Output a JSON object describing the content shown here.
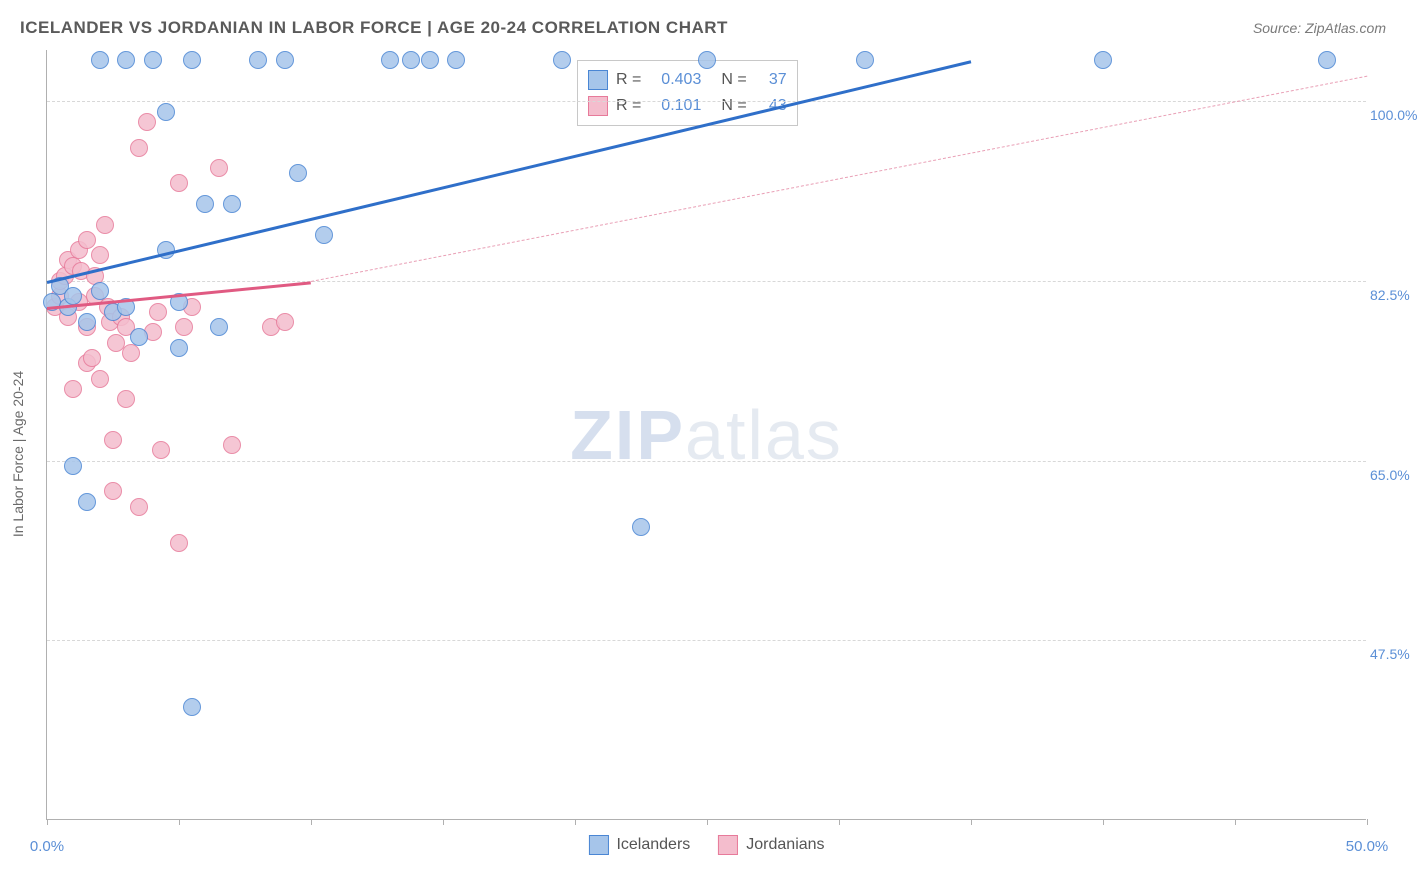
{
  "title": "ICELANDER VS JORDANIAN IN LABOR FORCE | AGE 20-24 CORRELATION CHART",
  "source": "Source: ZipAtlas.com",
  "y_axis_label": "In Labor Force | Age 20-24",
  "watermark": {
    "zip": "ZIP",
    "atlas": "atlas"
  },
  "chart": {
    "type": "scatter-with-trend",
    "background_color": "#ffffff",
    "grid_color": "#d8d8d8",
    "axis_color": "#b0b0b0",
    "xlim": [
      0,
      50
    ],
    "ylim": [
      30,
      105
    ],
    "xtick_positions": [
      0,
      5,
      10,
      15,
      20,
      25,
      30,
      35,
      40,
      45,
      50
    ],
    "xtick_labels": {
      "0": "0.0%",
      "50": "50.0%"
    },
    "ytick_positions": [
      47.5,
      65.0,
      82.5,
      100.0
    ],
    "ytick_labels": [
      "47.5%",
      "65.0%",
      "82.5%",
      "100.0%"
    ],
    "marker_radius": 9,
    "marker_stroke_width": 1.5,
    "marker_fill_opacity": 0.28,
    "label_color": "#5b8fd6",
    "series": [
      {
        "name": "Icelanders",
        "color_stroke": "#4a86d4",
        "color_fill": "#a6c5ea",
        "R": "0.403",
        "N": "37",
        "trend": {
          "x1": 0,
          "y1": 82.5,
          "x2": 35,
          "y2": 104,
          "width": 3,
          "dashed": false,
          "color": "#2f6fc9"
        },
        "points": [
          [
            0.2,
            80.5
          ],
          [
            0.5,
            82.0
          ],
          [
            0.8,
            80.0
          ],
          [
            1.0,
            81.0
          ],
          [
            1.0,
            64.5
          ],
          [
            1.5,
            61.0
          ],
          [
            1.5,
            78.5
          ],
          [
            2.0,
            81.5
          ],
          [
            2.0,
            104.0
          ],
          [
            2.5,
            79.5
          ],
          [
            3.0,
            104.0
          ],
          [
            3.0,
            80.0
          ],
          [
            3.5,
            77.0
          ],
          [
            4.0,
            104.0
          ],
          [
            4.5,
            85.5
          ],
          [
            4.5,
            99.0
          ],
          [
            5.0,
            76.0
          ],
          [
            5.0,
            80.5
          ],
          [
            5.5,
            41.0
          ],
          [
            5.5,
            104.0
          ],
          [
            6.0,
            90.0
          ],
          [
            6.5,
            78.0
          ],
          [
            7.0,
            90.0
          ],
          [
            8.0,
            104.0
          ],
          [
            9.0,
            104.0
          ],
          [
            9.5,
            93.0
          ],
          [
            10.5,
            87.0
          ],
          [
            13.0,
            104.0
          ],
          [
            13.8,
            104.0
          ],
          [
            14.5,
            104.0
          ],
          [
            15.5,
            104.0
          ],
          [
            19.5,
            104.0
          ],
          [
            22.5,
            58.5
          ],
          [
            25.0,
            104.0
          ],
          [
            31.0,
            104.0
          ],
          [
            40.0,
            104.0
          ],
          [
            48.5,
            104.0
          ]
        ]
      },
      {
        "name": "Jordanians",
        "color_stroke": "#e77a9a",
        "color_fill": "#f4bdcd",
        "R": "0.101",
        "N": "43",
        "trend_solid": {
          "x1": 0,
          "y1": 80.0,
          "x2": 10,
          "y2": 82.5,
          "width": 3,
          "dashed": false,
          "color": "#e05a82"
        },
        "trend_dash": {
          "x1": 10,
          "y1": 82.5,
          "x2": 50,
          "y2": 102.5,
          "width": 1.5,
          "dashed": true,
          "color": "#e9a0b6"
        },
        "points": [
          [
            0.3,
            80.0
          ],
          [
            0.5,
            81.0
          ],
          [
            0.5,
            82.5
          ],
          [
            0.7,
            83.0
          ],
          [
            0.8,
            79.0
          ],
          [
            0.8,
            84.5
          ],
          [
            1.0,
            84.0
          ],
          [
            1.0,
            72.0
          ],
          [
            1.2,
            85.5
          ],
          [
            1.2,
            80.5
          ],
          [
            1.3,
            83.5
          ],
          [
            1.5,
            78.0
          ],
          [
            1.5,
            74.5
          ],
          [
            1.5,
            86.5
          ],
          [
            1.7,
            75.0
          ],
          [
            1.8,
            81.0
          ],
          [
            1.8,
            83.0
          ],
          [
            2.0,
            73.0
          ],
          [
            2.0,
            85.0
          ],
          [
            2.2,
            88.0
          ],
          [
            2.3,
            80.0
          ],
          [
            2.4,
            78.5
          ],
          [
            2.5,
            67.0
          ],
          [
            2.5,
            62.0
          ],
          [
            2.6,
            76.5
          ],
          [
            2.8,
            79.0
          ],
          [
            3.0,
            78.0
          ],
          [
            3.0,
            71.0
          ],
          [
            3.2,
            75.5
          ],
          [
            3.5,
            95.5
          ],
          [
            3.5,
            60.5
          ],
          [
            3.8,
            98.0
          ],
          [
            4.0,
            77.5
          ],
          [
            4.2,
            79.5
          ],
          [
            4.3,
            66.0
          ],
          [
            5.0,
            57.0
          ],
          [
            5.0,
            92.0
          ],
          [
            5.2,
            78.0
          ],
          [
            5.5,
            80.0
          ],
          [
            6.5,
            93.5
          ],
          [
            7.0,
            66.5
          ],
          [
            8.5,
            78.0
          ],
          [
            9.0,
            78.5
          ]
        ]
      }
    ]
  },
  "stats_legend": {
    "r_label": "R =",
    "n_label": "N ="
  },
  "bottom_legend": {
    "series1_label": "Icelanders",
    "series2_label": "Jordanians"
  }
}
